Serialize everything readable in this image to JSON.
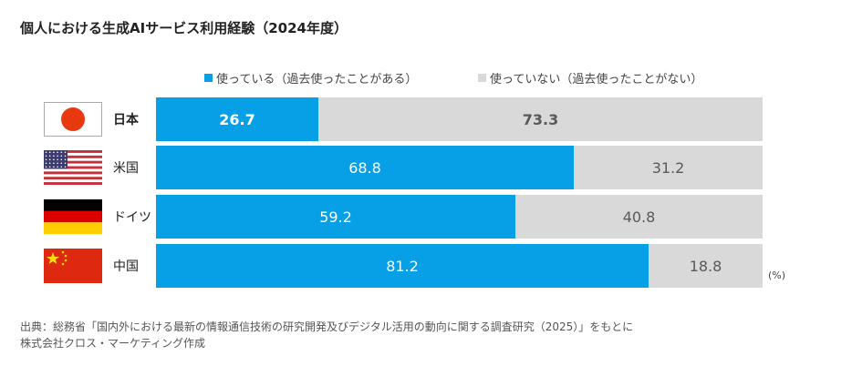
{
  "chart_data": {
    "type": "bar",
    "stacked": true,
    "orientation": "horizontal",
    "title": "個人における生成AIサービス利用経験（2024年度）",
    "categories": [
      "日本",
      "米国",
      "ドイツ",
      "中国"
    ],
    "series": [
      {
        "name": "使っている（過去使ったことがある）",
        "color": "#079fe6",
        "values": [
          26.7,
          68.8,
          59.2,
          81.2
        ]
      },
      {
        "name": "使っていない（過去使ったことがない）",
        "color": "#d9d9d9",
        "values": [
          73.3,
          31.2,
          40.8,
          18.8
        ]
      }
    ],
    "unit": "(%)",
    "xlim": [
      0,
      100
    ],
    "legend": "top",
    "grid": false,
    "flags": [
      "japan-flag",
      "usa-flag",
      "germany-flag",
      "china-flag"
    ]
  },
  "source": [
    "出典：総務省「国内外における最新の情報通信技術の研究開発及びデジタル活用の動向に関する調査研究（2025）」をもとに",
    "株式会社クロス・マーケティング作成"
  ]
}
